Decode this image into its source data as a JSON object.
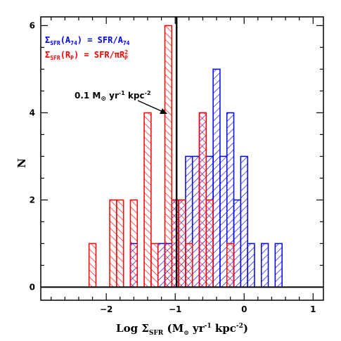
{
  "chart_data": {
    "type": "bar",
    "title": "",
    "xlabel": "Log ΣSFR (M⊙ yr⁻¹ kpc⁻²)",
    "xlabel_parts": {
      "prefix": "Log Σ",
      "sub": "SFR",
      "middle": " (M",
      "sun": "⊙",
      "after_sun": " yr",
      "exp1": "-1",
      "unit": " kpc",
      "exp2": "-2",
      "close": ")"
    },
    "ylabel": "N",
    "xlim": [
      -2.95,
      1.15
    ],
    "ylim": [
      -0.3,
      6.2
    ],
    "bin_width": 0.1,
    "x_ticks": [
      -2,
      -1,
      0,
      1
    ],
    "x_tick_labels": [
      "−2",
      "−1",
      "0",
      "1"
    ],
    "y_ticks": [
      0,
      2,
      4,
      6
    ],
    "y_tick_labels": [
      "0",
      "2",
      "4",
      "6"
    ],
    "grid": false,
    "legend_position": "top-left",
    "series": [
      {
        "name": "ΣSFR(A74) = SFR/A74",
        "name_parts": {
          "sym": "Σ",
          "sub": "SFR",
          "arg": "(A",
          "argsub": "74",
          "rest": ") = SFR/A",
          "restsub": "74"
        },
        "color": "#0000ff",
        "hatch": "back-diagonal",
        "x": [
          -1.6,
          -1.2,
          -1.1,
          -1.0,
          -0.9,
          -0.8,
          -0.7,
          -0.6,
          -0.5,
          -0.4,
          -0.3,
          -0.2,
          -0.1,
          0.0,
          0.1,
          0.3,
          0.5
        ],
        "values": [
          1,
          1,
          1,
          2,
          2,
          3,
          3,
          4,
          3,
          5,
          3,
          4,
          2,
          3,
          1,
          1,
          1
        ]
      },
      {
        "name": "ΣSFR(RP) = SFR/πRP²",
        "name_parts": {
          "sym": "Σ",
          "sub": "SFR",
          "arg": "(R",
          "argsub": "P",
          "rest": ") = SFR/πR",
          "restsup": "2",
          "restsub": "P"
        },
        "color": "#ff0000",
        "hatch": "diagonal",
        "x": [
          -2.2,
          -1.9,
          -1.8,
          -1.6,
          -1.4,
          -1.3,
          -1.1,
          -1.0,
          -0.9,
          -0.8,
          -0.6,
          -0.5,
          -0.2
        ],
        "values": [
          1,
          2,
          2,
          2,
          4,
          1,
          6,
          2,
          2,
          1,
          4,
          2,
          1
        ]
      }
    ],
    "vertical_line": {
      "x": -0.98,
      "label": "0.1 M⊙ yr⁻¹ kpc⁻²"
    },
    "annotation_parts": {
      "prefix": "0.1 M",
      "sun": "⊙",
      "mid": " yr",
      "exp1": "-1",
      "unit": " kpc",
      "exp2": "-2"
    }
  }
}
